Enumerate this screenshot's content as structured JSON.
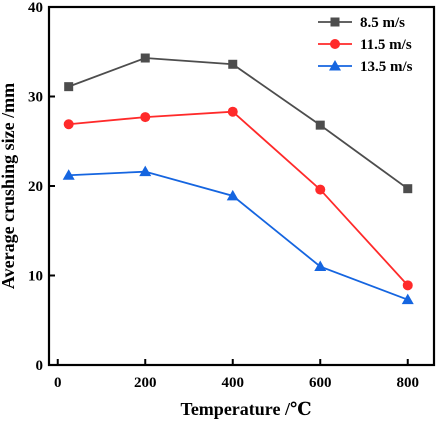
{
  "chart_data": {
    "type": "line",
    "title": "",
    "xlabel": "Temperature /℃",
    "ylabel": "Average crushing size /mm",
    "xlim": [
      -20,
      860
    ],
    "ylim": [
      0,
      40
    ],
    "x_ticks": [
      0,
      200,
      400,
      600,
      800
    ],
    "y_ticks": [
      0,
      10,
      20,
      30,
      40
    ],
    "x_tick_labels": [
      "0",
      "200",
      "400",
      "600",
      "800"
    ],
    "y_tick_labels": [
      "0",
      "10",
      "20",
      "30",
      "40"
    ],
    "x": [
      25,
      200,
      400,
      600,
      800
    ],
    "grid": false,
    "legend_position": "top-right",
    "series": [
      {
        "name": "8.5 m/s",
        "values": [
          31.1,
          34.3,
          33.6,
          26.8,
          19.7
        ],
        "color": "#4d4d4d",
        "marker": "square"
      },
      {
        "name": "11.5 m/s",
        "values": [
          26.9,
          27.7,
          28.3,
          19.6,
          8.9
        ],
        "color": "#ff2a2a",
        "marker": "circle"
      },
      {
        "name": "13.5 m/s",
        "values": [
          21.2,
          21.6,
          18.9,
          11.0,
          7.3
        ],
        "color": "#1565e0",
        "marker": "triangle"
      }
    ]
  }
}
